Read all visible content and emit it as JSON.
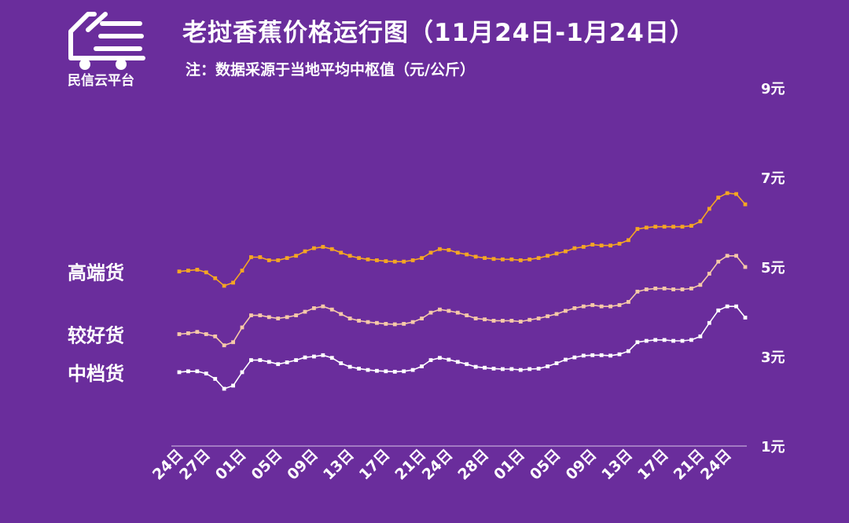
{
  "brand": {
    "name": "民信云平台",
    "logo_icon": "truck-icon"
  },
  "header": {
    "title": "老挝香蕉价格运行图（11月24日-1月24日）",
    "note": "注：数据采源于当地平均中枢值（元/公斤）"
  },
  "chart_data": {
    "type": "line",
    "ylim": [
      1,
      9
    ],
    "yticks": [
      "1元",
      "3元",
      "5元",
      "7元",
      "9元"
    ],
    "ytick_values": [
      1,
      3,
      5,
      7,
      9
    ],
    "xtick_labels": [
      "24日",
      "27日",
      "01日",
      "05日",
      "09日",
      "13日",
      "17日",
      "21日",
      "24日",
      "28日",
      "01日",
      "05日",
      "09日",
      "13日",
      "17日",
      "21日",
      "24日"
    ],
    "xtick_index": [
      0,
      3,
      7,
      11,
      15,
      19,
      23,
      27,
      30,
      34,
      38,
      42,
      46,
      50,
      54,
      58,
      61
    ],
    "grid": false,
    "series": [
      {
        "name": "高端货",
        "color": "#f5a623",
        "values": [
          4.9,
          4.92,
          4.94,
          4.88,
          4.75,
          4.58,
          4.65,
          4.92,
          5.22,
          5.22,
          5.15,
          5.15,
          5.2,
          5.25,
          5.35,
          5.42,
          5.45,
          5.4,
          5.32,
          5.25,
          5.2,
          5.17,
          5.15,
          5.13,
          5.12,
          5.12,
          5.15,
          5.2,
          5.32,
          5.4,
          5.38,
          5.32,
          5.28,
          5.23,
          5.2,
          5.18,
          5.17,
          5.17,
          5.15,
          5.17,
          5.2,
          5.25,
          5.3,
          5.35,
          5.42,
          5.45,
          5.5,
          5.48,
          5.48,
          5.52,
          5.6,
          5.85,
          5.88,
          5.9,
          5.9,
          5.9,
          5.9,
          5.92,
          6.02,
          6.3,
          6.55,
          6.65,
          6.63,
          6.4
        ]
      },
      {
        "name": "较好货",
        "color": "#f6c9a8",
        "values": [
          3.5,
          3.52,
          3.55,
          3.5,
          3.45,
          3.25,
          3.32,
          3.65,
          3.92,
          3.92,
          3.88,
          3.85,
          3.88,
          3.92,
          4.0,
          4.08,
          4.12,
          4.05,
          3.95,
          3.85,
          3.8,
          3.77,
          3.75,
          3.73,
          3.72,
          3.73,
          3.77,
          3.85,
          3.98,
          4.05,
          4.02,
          3.98,
          3.92,
          3.85,
          3.83,
          3.8,
          3.8,
          3.8,
          3.78,
          3.82,
          3.85,
          3.9,
          3.95,
          4.02,
          4.08,
          4.12,
          4.15,
          4.12,
          4.12,
          4.15,
          4.22,
          4.45,
          4.5,
          4.52,
          4.52,
          4.5,
          4.5,
          4.52,
          4.6,
          4.85,
          5.12,
          5.25,
          5.25,
          5.0
        ]
      },
      {
        "name": "中档货",
        "color": "#ffffff",
        "values": [
          2.65,
          2.67,
          2.67,
          2.62,
          2.5,
          2.28,
          2.35,
          2.65,
          2.92,
          2.92,
          2.88,
          2.83,
          2.87,
          2.92,
          2.98,
          3.0,
          3.03,
          2.97,
          2.85,
          2.77,
          2.73,
          2.7,
          2.68,
          2.67,
          2.66,
          2.67,
          2.7,
          2.78,
          2.92,
          2.97,
          2.93,
          2.88,
          2.83,
          2.77,
          2.75,
          2.73,
          2.72,
          2.72,
          2.7,
          2.72,
          2.73,
          2.78,
          2.85,
          2.93,
          2.98,
          3.02,
          3.03,
          3.03,
          3.02,
          3.05,
          3.12,
          3.32,
          3.35,
          3.37,
          3.37,
          3.35,
          3.35,
          3.37,
          3.45,
          3.75,
          4.03,
          4.12,
          4.12,
          3.87
        ]
      }
    ]
  }
}
